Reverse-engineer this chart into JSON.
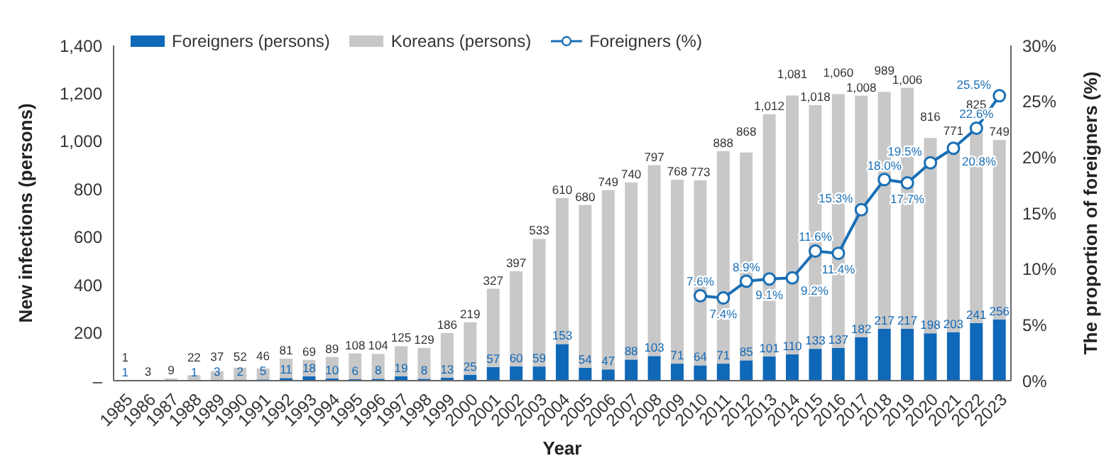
{
  "chart_data": {
    "type": "bar",
    "stacked": true,
    "xlabel": "Year",
    "ylabel": "New infections (persons)",
    "y2label": "The proportion of foreigners (%)",
    "categories": [
      "1985",
      "1986",
      "1987",
      "1988",
      "1989",
      "1990",
      "1991",
      "1992",
      "1993",
      "1994",
      "1995",
      "1996",
      "1997",
      "1998",
      "1999",
      "2000",
      "2001",
      "2002",
      "2003",
      "2004",
      "2005",
      "2006",
      "2007",
      "2008",
      "2009",
      "2010",
      "2011",
      "2012",
      "2013",
      "2014",
      "2015",
      "2016",
      "2017",
      "2018",
      "2019",
      "2020",
      "2021",
      "2022",
      "2023"
    ],
    "ylim": [
      0,
      1400
    ],
    "yticks": [
      {
        "value": 0,
        "label": "–"
      },
      200,
      400,
      600,
      800,
      {
        "value": 1000,
        "label": "1,000"
      },
      {
        "value": 1200,
        "label": "1,200"
      },
      {
        "value": 1400,
        "label": "1,400"
      }
    ],
    "y2lim": [
      0,
      30
    ],
    "y2ticks": [
      {
        "value": 0,
        "label": "0%"
      },
      {
        "value": 5,
        "label": "5%"
      },
      {
        "value": 10,
        "label": "10%"
      },
      {
        "value": 15,
        "label": "15%"
      },
      {
        "value": 20,
        "label": "20%"
      },
      {
        "value": 25,
        "label": "25%"
      },
      {
        "value": 30,
        "label": "30%"
      }
    ],
    "grid": false,
    "legend": "top left",
    "marker": "circle",
    "line_style": "solid",
    "series": [
      {
        "name": "Foreigners (persons)",
        "type": "bar",
        "color": "#1068b8",
        "values": [
          1,
          0,
          0,
          1,
          3,
          2,
          5,
          11,
          18,
          10,
          6,
          8,
          19,
          8,
          13,
          25,
          57,
          60,
          59,
          153,
          54,
          47,
          88,
          103,
          71,
          64,
          71,
          85,
          101,
          110,
          133,
          137,
          182,
          217,
          217,
          198,
          203,
          241,
          256
        ],
        "value_labels": [
          "1",
          null,
          null,
          "1",
          "3",
          "2",
          "5",
          "11",
          "18",
          "10",
          "6",
          "8",
          "19",
          "8",
          "13",
          "25",
          "57",
          "60",
          "59",
          "153",
          "54",
          "47",
          "88",
          "103",
          "71",
          "64",
          "71",
          "85",
          "101",
          "110",
          "133",
          "137",
          "182",
          "217",
          "217",
          "198",
          "203",
          "241",
          "256"
        ]
      },
      {
        "name": "Koreans (persons)",
        "type": "bar",
        "color": "#c8c8c8",
        "values": [
          1,
          3,
          9,
          22,
          37,
          52,
          46,
          81,
          69,
          89,
          108,
          104,
          125,
          129,
          186,
          219,
          327,
          397,
          533,
          610,
          680,
          749,
          740,
          797,
          768,
          773,
          888,
          868,
          1012,
          1081,
          1018,
          1060,
          1008,
          989,
          1006,
          816,
          771,
          825,
          749
        ],
        "value_labels": [
          "1",
          "3",
          "9",
          "22",
          "37",
          "52",
          "46",
          "81",
          "69",
          "89",
          "108",
          "104",
          "125",
          "129",
          "186",
          "219",
          "327",
          "397",
          "533",
          "610",
          "680",
          "749",
          "740",
          "797",
          "768",
          "773",
          "888",
          "868",
          "1,012",
          "1,081",
          "1,018",
          "1,060",
          "1,008",
          "989",
          "1,006",
          "816",
          "771",
          "825",
          "749"
        ]
      },
      {
        "name": "Foreigners (%)",
        "type": "line",
        "axis": "y2",
        "color": "#1a6fb5",
        "values": [
          null,
          null,
          null,
          null,
          null,
          null,
          null,
          null,
          null,
          null,
          null,
          null,
          null,
          null,
          null,
          null,
          null,
          null,
          null,
          null,
          null,
          null,
          null,
          null,
          null,
          7.6,
          7.4,
          8.9,
          9.1,
          9.2,
          11.6,
          11.4,
          15.3,
          18.0,
          17.7,
          19.5,
          20.8,
          22.6,
          25.5
        ],
        "value_labels": [
          null,
          null,
          null,
          null,
          null,
          null,
          null,
          null,
          null,
          null,
          null,
          null,
          null,
          null,
          null,
          null,
          null,
          null,
          null,
          null,
          null,
          null,
          null,
          null,
          null,
          "7.6%",
          "7.4%",
          "8.9%",
          "9.1%",
          "9.2%",
          "11.6%",
          "11.4%",
          "15.3%",
          "18.0%",
          "17.7%",
          "19.5%",
          "20.8%",
          "22.6%",
          "25.5%"
        ]
      }
    ]
  }
}
